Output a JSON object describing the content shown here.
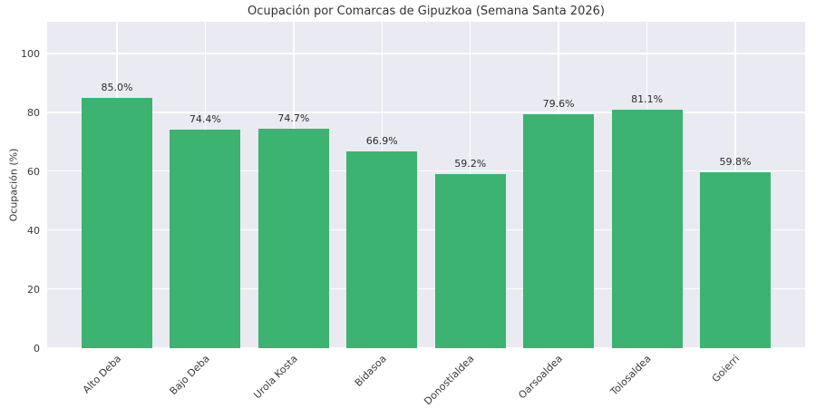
{
  "chart_data": {
    "type": "bar",
    "title": "Ocupación por Comarcas de Gipuzkoa (Semana Santa 2026)",
    "xlabel": "",
    "ylabel": "Ocupación (%)",
    "categories": [
      "Alto Deba",
      "Bajo Deba",
      "Urola Kosta",
      "Bidasoa",
      "Donostialdea",
      "Oarsoaldea",
      "Tolosaldea",
      "Goierri"
    ],
    "values": [
      85.0,
      74.4,
      74.7,
      66.9,
      59.2,
      79.6,
      81.1,
      59.8
    ],
    "bar_labels": [
      "85.0%",
      "74.4%",
      "74.7%",
      "66.9%",
      "59.2%",
      "79.6%",
      "81.1%",
      "59.8%"
    ],
    "yticks": [
      0,
      20,
      40,
      60,
      80,
      100
    ],
    "ylim": [
      0,
      111
    ],
    "grid": true,
    "legend_position": "none",
    "style": {
      "bar_color": "#3cb371",
      "plot_background": "#eaeaf2",
      "grid_color": "#ffffff",
      "figure_background": "#ffffff",
      "text_color": "#333333"
    }
  }
}
